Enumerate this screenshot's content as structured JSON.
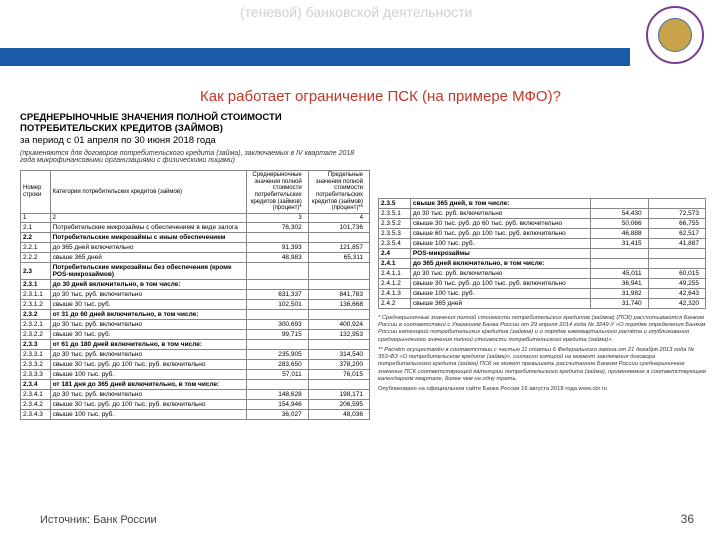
{
  "slide": {
    "header_faded": "(теневой) банковской деятельности",
    "question": "Как работает ограничение ПСК (на примере МФО)?",
    "source": "Источник: Банк России",
    "page_num": "36"
  },
  "doc": {
    "title_line1": "СРЕДНЕРЫНОЧНЫЕ ЗНАЧЕНИЯ ПОЛНОЙ СТОИМОСТИ",
    "title_line2": "ПОТРЕБИТЕЛЬСКИХ КРЕДИТОВ (ЗАЙМОВ)",
    "title_line3": "за период с 01 апреля по 30 июня 2018 года",
    "sub": "(применяются для договоров потребительского кредита (займа), заключаемых в IV квартале 2018 года микрофинансовыми организациями с физическими лицами)"
  },
  "leftHead": {
    "h1": "Номер строки",
    "h2": "Категории потребительских кредитов (займов)",
    "h3": "Среднерыночные значения полной стоимости потребительских кредитов (займов) (процент)*",
    "h4": "Предельные значения полной стоимости потребительских кредитов (займов) (процент)**",
    "n1": "1",
    "n2": "2",
    "n3": "3",
    "n4": "4"
  },
  "leftRows": [
    {
      "n": "2.1",
      "t": "Потребительские микрозаймы с обеспечением в виде залога",
      "v1": "76,302",
      "v2": "101,736",
      "b": false
    },
    {
      "n": "2.2",
      "t": "Потребительские микрозаймы с иным обеспечением",
      "v1": "",
      "v2": "",
      "b": true
    },
    {
      "n": "2.2.1",
      "t": "до 365 дней включительно",
      "v1": "91,393",
      "v2": "121,857",
      "b": false
    },
    {
      "n": "2.2.2",
      "t": "свыше 365 дней",
      "v1": "48,983",
      "v2": "65,311",
      "b": false
    },
    {
      "n": "2.3",
      "t": "Потребительские микрозаймы без обеспечения (кроме POS-микрозаймов)",
      "v1": "",
      "v2": "",
      "b": true
    },
    {
      "n": "2.3.1",
      "t": "до 30 дней включительно, в том числе:",
      "v1": "",
      "v2": "",
      "b": true
    },
    {
      "n": "2.3.1.1",
      "t": "до 30 тыс. руб. включительно",
      "v1": "631,337",
      "v2": "841,783",
      "b": false
    },
    {
      "n": "2.3.1.2",
      "t": "свыше 30 тыс. руб.",
      "v1": "102,501",
      "v2": "136,668",
      "b": false
    },
    {
      "n": "2.3.2",
      "t": "от 31 до 60 дней включительно, в том числе:",
      "v1": "",
      "v2": "",
      "b": true
    },
    {
      "n": "2.3.2.1",
      "t": "до 30 тыс. руб. включительно",
      "v1": "300,693",
      "v2": "400,924",
      "b": false
    },
    {
      "n": "2.3.2.2",
      "t": "свыше 30 тыс. руб.",
      "v1": "99,715",
      "v2": "132,953",
      "b": false
    },
    {
      "n": "2.3.3",
      "t": "от 61 до 180 дней включительно, в том числе:",
      "v1": "",
      "v2": "",
      "b": true
    },
    {
      "n": "2.3.3.1",
      "t": "до 30 тыс. руб. включительно",
      "v1": "235,905",
      "v2": "314,540",
      "b": false
    },
    {
      "n": "2.3.3.2",
      "t": "свыше 30 тыс. руб. до 100 тыс. руб. включительно",
      "v1": "283,650",
      "v2": "378,200",
      "b": false
    },
    {
      "n": "2.3.3.3",
      "t": "свыше 100 тыс. руб.",
      "v1": "57,011",
      "v2": "76,015",
      "b": false
    },
    {
      "n": "2.3.4",
      "t": "от 181 дня до 365 дней включительно, в том числе:",
      "v1": "",
      "v2": "",
      "b": true
    },
    {
      "n": "2.3.4.1",
      "t": "до 30 тыс. руб. включительно",
      "v1": "148,628",
      "v2": "198,171",
      "b": false
    },
    {
      "n": "2.3.4.2",
      "t": "свыше 30 тыс. руб. до 100 тыс. руб. включительно",
      "v1": "154,946",
      "v2": "206,595",
      "b": false
    },
    {
      "n": "2.3.4.3",
      "t": "свыше 100 тыс. руб.",
      "v1": "36,027",
      "v2": "48,036",
      "b": false
    }
  ],
  "rightRows": [
    {
      "n": "2.3.5",
      "t": "свыше 365 дней, в том числе:",
      "v1": "",
      "v2": "",
      "b": true
    },
    {
      "n": "2.3.5.1",
      "t": "до 30 тыс. руб. включительно",
      "v1": "54,430",
      "v2": "72,573",
      "b": false
    },
    {
      "n": "2.3.5.2",
      "t": "свыше 30 тыс. руб. до 60 тыс. руб. включительно",
      "v1": "50,066",
      "v2": "66,755",
      "b": false
    },
    {
      "n": "2.3.5.3",
      "t": "свыше 60 тыс. руб. до 100 тыс. руб. включительно",
      "v1": "46,888",
      "v2": "62,517",
      "b": false
    },
    {
      "n": "2.3.5.4",
      "t": "свыше 100 тыс. руб.",
      "v1": "31,415",
      "v2": "41,887",
      "b": false
    },
    {
      "n": "2.4",
      "t": "POS-микрозаймы",
      "v1": "",
      "v2": "",
      "b": true
    },
    {
      "n": "2.4.1",
      "t": "до 365 дней включительно, в том числе:",
      "v1": "",
      "v2": "",
      "b": true
    },
    {
      "n": "2.4.1.1",
      "t": "до 30 тыс. руб. включительно",
      "v1": "45,011",
      "v2": "60,015",
      "b": false
    },
    {
      "n": "2.4.1.2",
      "t": "свыше 30 тыс. руб. до 100 тыс. руб. включительно",
      "v1": "36,941",
      "v2": "49,255",
      "b": false
    },
    {
      "n": "2.4.1.3",
      "t": "свыше 100 тыс. руб.",
      "v1": "31,982",
      "v2": "42,643",
      "b": false
    },
    {
      "n": "2.4.2",
      "t": "свыше 365 дней",
      "v1": "31,740",
      "v2": "42,320",
      "b": false
    }
  ],
  "fn": {
    "p1": "* Среднерыночные значения полной стоимости потребительских кредитов (займов) (ПСК) рассчитываются Банком России в соответствии с Указанием Банка России от 29 апреля 2014 года № 3249-У «О порядке определения Банком России категорий потребительских кредитов (займов) и о порядке ежеквартального расчёта и опубликования среднерыночного значения полной стоимости потребительского кредита (займа)».",
    "p2": "** Расчёт осуществлён в соответствии с частью 11 статьи 6 Федерального закона от 21 декабря 2013 года № 353-ФЗ «О потребительском кредите (займе)», согласно которой на момент заключения договора потребительского кредита (займа) ПСК не может превышать рассчитанное Банком России среднерыночное значение ПСК соответствующей категории потребительского кредита (займа), применяемое в соответствующем календарном квартале, более чем на одну треть.",
    "p3": "Опубликовано на официальном сайте Банка России 16 августа 2018 года www.cbr.ru"
  }
}
